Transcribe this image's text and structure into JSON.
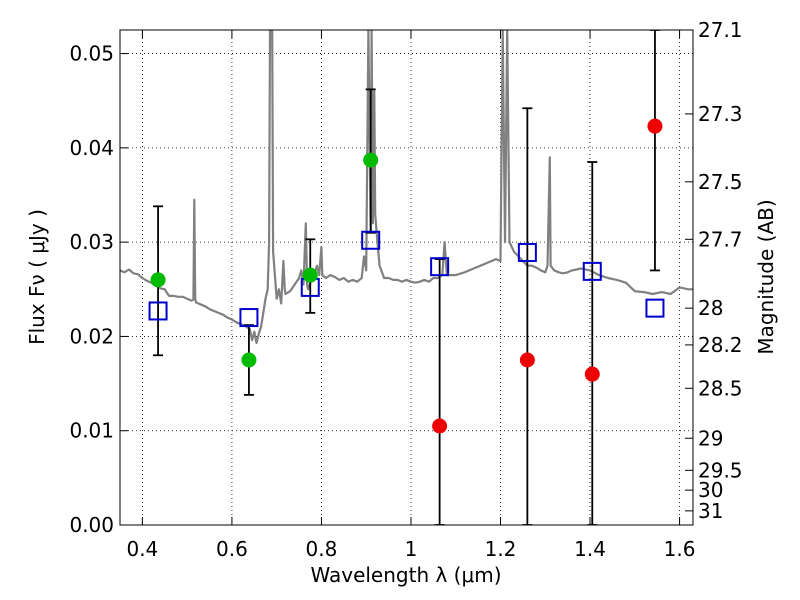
{
  "chart_data": {
    "type": "scatter",
    "xlabel": "Wavelength  λ (μm)",
    "ylabel": "Flux  Fν  ( μJy )",
    "y2label": "Magnitude (AB)",
    "xlim": [
      0.35,
      1.63
    ],
    "ylim": [
      0.0,
      0.0525
    ],
    "grid": true,
    "x_ticks": [
      0.4,
      0.6,
      0.8,
      1.0,
      1.2,
      1.4,
      1.6
    ],
    "x_tick_labels": [
      "0.4",
      "0.6",
      "0.8",
      "1",
      "1.2",
      "1.4",
      "1.6"
    ],
    "y_ticks": [
      0.0,
      0.01,
      0.02,
      0.03,
      0.04,
      0.05
    ],
    "y_tick_labels": [
      "0.00",
      "0.01",
      "0.02",
      "0.03",
      "0.04",
      "0.05"
    ],
    "y2_ticks": [
      {
        "label": "27.1",
        "flux": 0.0525
      },
      {
        "label": "27.3",
        "flux": 0.0436
      },
      {
        "label": "27.5",
        "flux": 0.0364
      },
      {
        "label": "27.7",
        "flux": 0.0303
      },
      {
        "label": "28",
        "flux": 0.023
      },
      {
        "label": "28.2",
        "flux": 0.0191
      },
      {
        "label": "28.5",
        "flux": 0.0145
      },
      {
        "label": "29",
        "flux": 0.0092
      },
      {
        "label": "29.5",
        "flux": 0.0058
      },
      {
        "label": "30",
        "flux": 0.0037
      },
      {
        "label": "31",
        "flux": 0.0015
      }
    ],
    "colors": {
      "model": "#808080",
      "green": "#00bb00",
      "red": "#ee0000",
      "square": "#0000cc",
      "errorbar": "#000000",
      "grid": "#000000"
    },
    "model_spectrum": {
      "name": "",
      "points": [
        [
          0.35,
          0.027
        ],
        [
          0.36,
          0.0268
        ],
        [
          0.37,
          0.0271
        ],
        [
          0.38,
          0.0267
        ],
        [
          0.39,
          0.0266
        ],
        [
          0.4,
          0.0262
        ],
        [
          0.41,
          0.0259
        ],
        [
          0.42,
          0.0257
        ],
        [
          0.43,
          0.0254
        ],
        [
          0.44,
          0.0251
        ],
        [
          0.45,
          0.025
        ],
        [
          0.455,
          0.0246
        ],
        [
          0.46,
          0.0243
        ],
        [
          0.47,
          0.0243
        ],
        [
          0.48,
          0.0242
        ],
        [
          0.49,
          0.0242
        ],
        [
          0.5,
          0.024
        ],
        [
          0.51,
          0.0238
        ],
        [
          0.514,
          0.0239
        ],
        [
          0.516,
          0.0345
        ],
        [
          0.518,
          0.024
        ],
        [
          0.52,
          0.0236
        ],
        [
          0.53,
          0.0234
        ],
        [
          0.54,
          0.0232
        ],
        [
          0.55,
          0.0229
        ],
        [
          0.56,
          0.0227
        ],
        [
          0.57,
          0.0225
        ],
        [
          0.58,
          0.0223
        ],
        [
          0.59,
          0.022
        ],
        [
          0.6,
          0.0218
        ],
        [
          0.61,
          0.0215
        ],
        [
          0.62,
          0.0213
        ],
        [
          0.63,
          0.0211
        ],
        [
          0.64,
          0.0208
        ],
        [
          0.645,
          0.0196
        ],
        [
          0.65,
          0.0205
        ],
        [
          0.655,
          0.0193
        ],
        [
          0.66,
          0.0203
        ],
        [
          0.665,
          0.021
        ],
        [
          0.67,
          0.0225
        ],
        [
          0.675,
          0.024
        ],
        [
          0.68,
          0.025
        ],
        [
          0.683,
          0.03
        ],
        [
          0.685,
          0.0525
        ],
        [
          0.69,
          0.0525
        ],
        [
          0.692,
          0.029
        ],
        [
          0.7,
          0.024
        ],
        [
          0.705,
          0.025
        ],
        [
          0.71,
          0.0235
        ],
        [
          0.715,
          0.028
        ],
        [
          0.718,
          0.025
        ],
        [
          0.72,
          0.0245
        ],
        [
          0.73,
          0.0248
        ],
        [
          0.74,
          0.0255
        ],
        [
          0.75,
          0.0262
        ],
        [
          0.755,
          0.027
        ],
        [
          0.76,
          0.0255
        ],
        [
          0.765,
          0.032
        ],
        [
          0.768,
          0.0255
        ],
        [
          0.77,
          0.025
        ],
        [
          0.775,
          0.0257
        ],
        [
          0.78,
          0.026
        ],
        [
          0.79,
          0.0275
        ],
        [
          0.795,
          0.0265
        ],
        [
          0.8,
          0.0295
        ],
        [
          0.802,
          0.0265
        ],
        [
          0.81,
          0.0262
        ],
        [
          0.82,
          0.0265
        ],
        [
          0.83,
          0.0263
        ],
        [
          0.84,
          0.026
        ],
        [
          0.85,
          0.0262
        ],
        [
          0.86,
          0.0258
        ],
        [
          0.87,
          0.026
        ],
        [
          0.88,
          0.0258
        ],
        [
          0.89,
          0.0262
        ],
        [
          0.895,
          0.0285
        ],
        [
          0.9,
          0.027
        ],
        [
          0.905,
          0.0525
        ],
        [
          0.91,
          0.031
        ],
        [
          0.912,
          0.0525
        ],
        [
          0.915,
          0.032
        ],
        [
          0.918,
          0.046
        ],
        [
          0.92,
          0.033
        ],
        [
          0.925,
          0.03
        ],
        [
          0.93,
          0.0275
        ],
        [
          0.94,
          0.0262
        ],
        [
          0.95,
          0.0262
        ],
        [
          0.96,
          0.026
        ],
        [
          0.97,
          0.026
        ],
        [
          0.98,
          0.0258
        ],
        [
          0.99,
          0.026
        ],
        [
          1.0,
          0.0258
        ],
        [
          1.01,
          0.0257
        ],
        [
          1.02,
          0.0258
        ],
        [
          1.03,
          0.026
        ],
        [
          1.04,
          0.0258
        ],
        [
          1.05,
          0.0262
        ],
        [
          1.06,
          0.0262
        ],
        [
          1.07,
          0.0265
        ],
        [
          1.075,
          0.03
        ],
        [
          1.08,
          0.0265
        ],
        [
          1.09,
          0.0265
        ],
        [
          1.1,
          0.0265
        ],
        [
          1.12,
          0.0268
        ],
        [
          1.14,
          0.0272
        ],
        [
          1.16,
          0.0276
        ],
        [
          1.18,
          0.028
        ],
        [
          1.19,
          0.0282
        ],
        [
          1.2,
          0.028
        ],
        [
          1.205,
          0.0525
        ],
        [
          1.21,
          0.03
        ],
        [
          1.215,
          0.0525
        ],
        [
          1.22,
          0.03
        ],
        [
          1.23,
          0.029
        ],
        [
          1.24,
          0.0285
        ],
        [
          1.25,
          0.028
        ],
        [
          1.26,
          0.0275
        ],
        [
          1.27,
          0.0275
        ],
        [
          1.28,
          0.0273
        ],
        [
          1.29,
          0.027
        ],
        [
          1.3,
          0.0268
        ],
        [
          1.305,
          0.0275
        ],
        [
          1.31,
          0.039
        ],
        [
          1.312,
          0.0275
        ],
        [
          1.32,
          0.027
        ],
        [
          1.33,
          0.0268
        ],
        [
          1.34,
          0.0267
        ],
        [
          1.35,
          0.0268
        ],
        [
          1.36,
          0.027
        ],
        [
          1.38,
          0.0272
        ],
        [
          1.4,
          0.027
        ],
        [
          1.42,
          0.0265
        ],
        [
          1.44,
          0.0262
        ],
        [
          1.46,
          0.026
        ],
        [
          1.48,
          0.0257
        ],
        [
          1.5,
          0.0248
        ],
        [
          1.52,
          0.0247
        ],
        [
          1.54,
          0.0245
        ],
        [
          1.56,
          0.0247
        ],
        [
          1.58,
          0.0245
        ],
        [
          1.6,
          0.0252
        ],
        [
          1.62,
          0.025
        ],
        [
          1.63,
          0.025
        ]
      ]
    },
    "green_points": [
      {
        "x": 0.435,
        "y": 0.026,
        "err_low": 0.018,
        "err_high": 0.0338
      },
      {
        "x": 0.638,
        "y": 0.0175,
        "err_low": 0.0138,
        "err_high": 0.0212
      },
      {
        "x": 0.775,
        "y": 0.0265,
        "err_low": 0.0225,
        "err_high": 0.0303
      },
      {
        "x": 0.91,
        "y": 0.0387,
        "err_low": 0.031,
        "err_high": 0.0462
      }
    ],
    "red_points": [
      {
        "x": 1.064,
        "y": 0.0105,
        "err_low": 0.0,
        "err_high": 0.0282
      },
      {
        "x": 1.26,
        "y": 0.0175,
        "err_low": 0.0,
        "err_high": 0.0442
      },
      {
        "x": 1.405,
        "y": 0.016,
        "err_low": 0.0,
        "err_high": 0.0385
      },
      {
        "x": 1.545,
        "y": 0.0423,
        "err_low": 0.027,
        "err_high": 0.0525
      }
    ],
    "square_points": [
      {
        "x": 0.435,
        "y": 0.0227
      },
      {
        "x": 0.638,
        "y": 0.022
      },
      {
        "x": 0.775,
        "y": 0.0252
      },
      {
        "x": 0.91,
        "y": 0.0302
      },
      {
        "x": 1.064,
        "y": 0.0274
      },
      {
        "x": 1.26,
        "y": 0.0289
      },
      {
        "x": 1.405,
        "y": 0.0269
      },
      {
        "x": 1.545,
        "y": 0.023
      }
    ]
  }
}
